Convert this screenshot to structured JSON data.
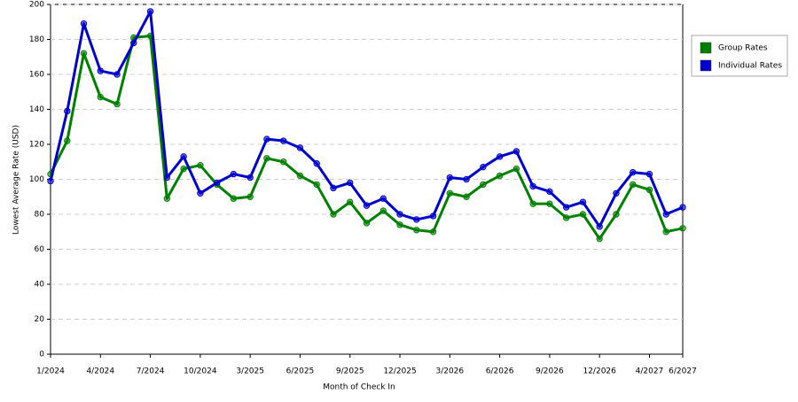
{
  "chart_data": {
    "type": "line",
    "x_label": "Month of Check In",
    "y_label": "Lowest Average Rate (USD)",
    "categories": [
      "1/2024",
      null,
      null,
      "4/2024",
      null,
      null,
      "7/2024",
      null,
      null,
      "10/2024",
      null,
      null,
      "3/2025",
      null,
      null,
      "6/2025",
      null,
      null,
      "9/2025",
      null,
      null,
      "12/2025",
      null,
      null,
      "3/2026",
      null,
      null,
      "6/2026",
      null,
      null,
      "9/2026",
      null,
      null,
      "12/2026",
      null,
      null,
      "4/2027",
      null,
      "6/2027"
    ],
    "series": [
      {
        "name": "Group Rates",
        "color": "#008000",
        "values": [
          103,
          122,
          172,
          147,
          143,
          181,
          182,
          89,
          106,
          108,
          97,
          89,
          90,
          112,
          110,
          102,
          97,
          80,
          87,
          75,
          82,
          74,
          71,
          70,
          92,
          90,
          97,
          102,
          106,
          86,
          86,
          78,
          80,
          66,
          80,
          97,
          94,
          70,
          72
        ]
      },
      {
        "name": "Individual Rates",
        "color": "#0000cc",
        "values": [
          99,
          139,
          189,
          162,
          160,
          178,
          196,
          101,
          113,
          92,
          98,
          103,
          101,
          123,
          122,
          118,
          109,
          95,
          98,
          85,
          89,
          80,
          77,
          79,
          101,
          100,
          107,
          113,
          116,
          96,
          93,
          84,
          87,
          73,
          92,
          104,
          103,
          80,
          84
        ]
      }
    ],
    "ylim": [
      0,
      200
    ],
    "yticks": [
      0,
      20,
      40,
      60,
      80,
      100,
      120,
      140,
      160,
      180,
      200
    ],
    "grid": true,
    "legend": "right"
  }
}
